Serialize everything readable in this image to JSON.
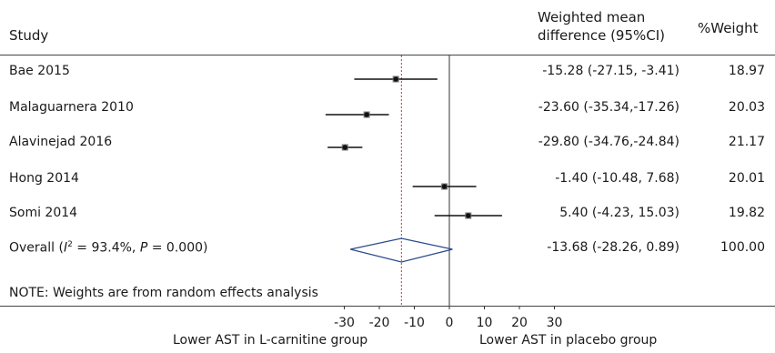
{
  "header": {
    "study": "Study",
    "effect_line1": "Weighted mean",
    "effect_line2": "difference (95%CI)",
    "weight": "%Weight"
  },
  "studies": [
    {
      "label": "Bae 2015",
      "ci_text": "-15.28 (-27.15, -3.41)",
      "weight_text": "18.97"
    },
    {
      "label": "Malaguarnera 2010",
      "ci_text": "-23.60 (-35.34,-17.26)",
      "weight_text": "20.03"
    },
    {
      "label": "Alavinejad 2016",
      "ci_text": "-29.80 (-34.76,-24.84)",
      "weight_text": "21.17"
    },
    {
      "label": "Hong 2014",
      "ci_text": "-1.40 (-10.48, 7.68)",
      "weight_text": "20.01"
    },
    {
      "label": "Somi 2014",
      "ci_text": "5.40 (-4.23, 15.03)",
      "weight_text": "19.82"
    }
  ],
  "overall": {
    "label_prefix": "Overall (",
    "label_i": "I",
    "label_sup": "2",
    "label_mid": " = 93.4%, ",
    "label_p": "P",
    "label_suffix": " = 0.000)",
    "ci_text": "-13.68 (-28.26, 0.89)",
    "weight_text": "100.00"
  },
  "note": "NOTE: Weights are from  random effects analysis",
  "axis": {
    "left_label": "Lower AST in L-carnitine group",
    "right_label": "Lower AST in placebo group"
  },
  "colors": {
    "marker": "#111111",
    "diamond": "#2b4a8c",
    "reference_line": "#d0302a",
    "zero_line": "#333333"
  },
  "chart_data": {
    "type": "forest",
    "xlim": [
      -30,
      30
    ],
    "xticks": [
      -30,
      -20,
      -10,
      0,
      10,
      20,
      30
    ],
    "tick_labels": [
      "-30",
      "-20",
      "-10",
      "0",
      "10",
      "20",
      "30"
    ],
    "xlabel_left": "Lower AST in L-carnitine group",
    "xlabel_right": "Lower AST in placebo group",
    "reference_line": 0,
    "pooled_line": -13.68,
    "studies": [
      {
        "study": "Bae 2015",
        "estimate": -15.28,
        "lower": -27.15,
        "upper": -3.41,
        "weight": 18.97
      },
      {
        "study": "Malaguarnera 2010",
        "estimate": -23.6,
        "lower": -35.34,
        "upper": -17.26,
        "weight": 20.03
      },
      {
        "study": "Alavinejad 2016",
        "estimate": -29.8,
        "lower": -34.76,
        "upper": -24.84,
        "weight": 21.17
      },
      {
        "study": "Hong 2014",
        "estimate": -1.4,
        "lower": -10.48,
        "upper": 7.68,
        "weight": 20.01
      },
      {
        "study": "Somi 2014",
        "estimate": 5.4,
        "lower": -4.23,
        "upper": 15.03,
        "weight": 19.82
      }
    ],
    "overall": {
      "estimate": -13.68,
      "lower": -28.26,
      "upper": 0.89,
      "weight": 100.0,
      "i2": "93.4%",
      "p": "0.000"
    }
  }
}
